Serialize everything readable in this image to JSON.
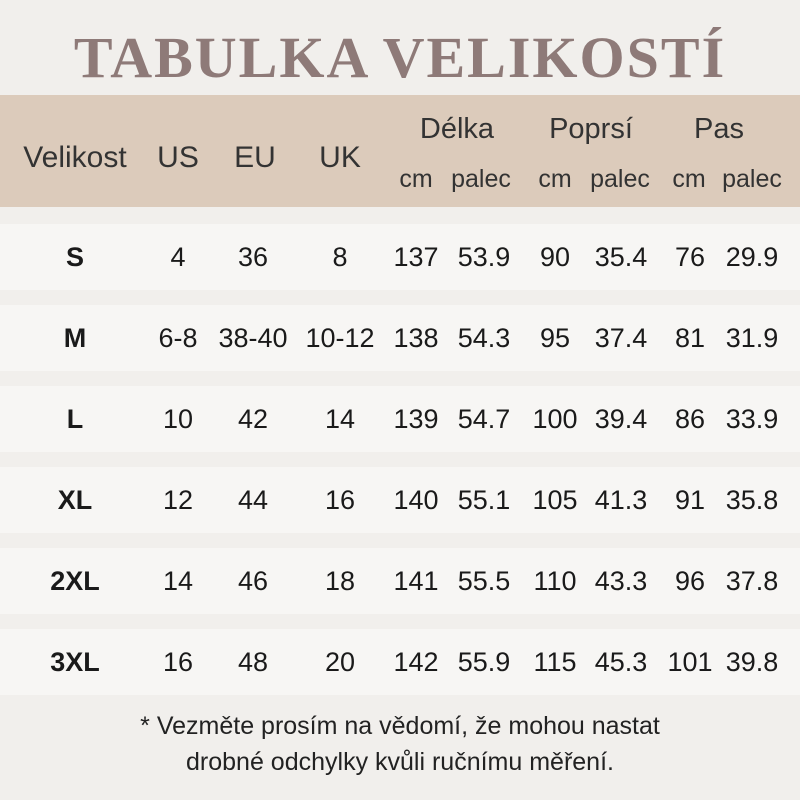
{
  "title": "TABULKA VELIKOSTÍ",
  "header": {
    "size": "Velikost",
    "us": "US",
    "eu": "EU",
    "uk": "UK",
    "length": "Délka",
    "bust": "Poprsí",
    "waist": "Pas",
    "cm": "cm",
    "inch": "palec"
  },
  "rows": [
    [
      "S",
      "4",
      "36",
      "8",
      "137",
      "53.9",
      "90",
      "35.4",
      "76",
      "29.9"
    ],
    [
      "M",
      "6-8",
      "38-40",
      "10-12",
      "138",
      "54.3",
      "95",
      "37.4",
      "81",
      "31.9"
    ],
    [
      "L",
      "10",
      "42",
      "14",
      "139",
      "54.7",
      "100",
      "39.4",
      "86",
      "33.9"
    ],
    [
      "XL",
      "12",
      "44",
      "16",
      "140",
      "55.1",
      "105",
      "41.3",
      "91",
      "35.8"
    ],
    [
      "2XL",
      "14",
      "46",
      "18",
      "141",
      "55.5",
      "110",
      "43.3",
      "96",
      "37.8"
    ],
    [
      "3XL",
      "16",
      "48",
      "20",
      "142",
      "55.9",
      "115",
      "45.3",
      "101",
      "39.8"
    ]
  ],
  "note": {
    "line1": "* Vezměte prosím na vědomí, že mohou nastat",
    "line2": "drobné odchylky kvůli ručnímu měření."
  },
  "colors": {
    "title": "#8e7a78",
    "header_bg": "#dccbbb",
    "row_bg": "#f7f6f4",
    "page_bg": "#f1efec"
  }
}
